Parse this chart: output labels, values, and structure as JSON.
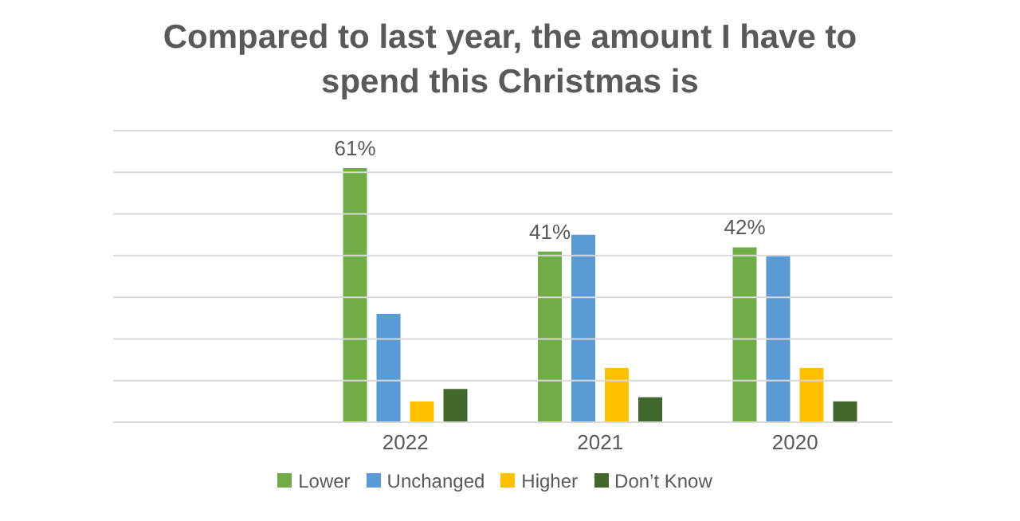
{
  "chart_data": {
    "type": "bar",
    "title": "Compared to last year, the amount I have to spend this Christmas is",
    "categories": [
      null,
      "2022",
      "2021",
      "2020"
    ],
    "series": [
      {
        "name": "Lower",
        "color": "#70ad47",
        "values": [
          null,
          61,
          41,
          42
        ],
        "value_labels": [
          null,
          "61%",
          "41%",
          "42%"
        ]
      },
      {
        "name": "Unchanged",
        "color": "#5b9bd5",
        "values": [
          null,
          26,
          45,
          40
        ]
      },
      {
        "name": "Higher",
        "color": "#ffc000",
        "values": [
          null,
          5,
          13,
          13
        ]
      },
      {
        "name": "Don’t Know",
        "color": "#43682b",
        "values": [
          null,
          8,
          6,
          5
        ]
      }
    ],
    "ylim": [
      0,
      70
    ],
    "yticks": [
      {
        "value": 0,
        "label": null
      },
      {
        "value": 10,
        "label": null
      },
      {
        "value": 20,
        "label": null
      },
      {
        "value": 30,
        "label": null
      },
      {
        "value": 40,
        "label": null
      },
      {
        "value": 50,
        "label": null
      },
      {
        "value": 60,
        "label": null
      },
      {
        "value": 70,
        "label": null
      }
    ],
    "tick_labels": "x",
    "grid": "y",
    "legend": "bottom"
  }
}
